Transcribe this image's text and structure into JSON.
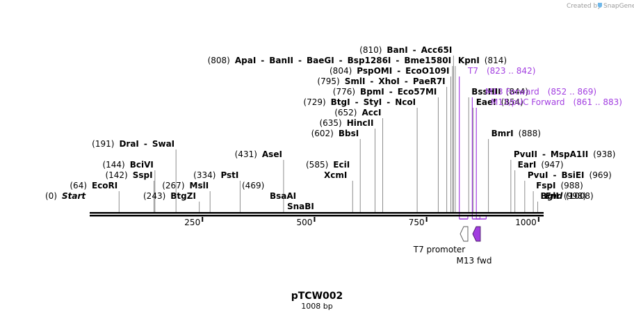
{
  "plasmid": {
    "name": "pTCW002",
    "length_label": "1008 bp",
    "length": 1008
  },
  "credit": {
    "text": "Created by",
    "brand": "SnapGene"
  },
  "axis": {
    "ticks": [
      250,
      500,
      750,
      1000
    ]
  },
  "sites": [
    {
      "row": 0,
      "parts": [
        {
          "t": "(0)"
        },
        {
          "t": "Start",
          "italic": true
        }
      ],
      "pos": 0,
      "line": false
    },
    {
      "row": 0,
      "parts": [
        {
          "t": "End",
          "italic": true
        },
        {
          "t": "(1008)"
        }
      ],
      "pos": 1008,
      "line": false,
      "right": true
    },
    {
      "row": 0,
      "parts": [
        {
          "t": "(243)"
        },
        {
          "t": "BtgZI",
          "bold": true
        }
      ],
      "pos": 243
    },
    {
      "row": 0,
      "parts": [
        {
          "t": "BsaAI",
          "bold": true
        }
      ],
      "pos": 469,
      "sub": "SnaBI"
    },
    {
      "row": 0,
      "parts": [
        {
          "t": "BglI",
          "bold": true
        },
        {
          "t": "(998)"
        }
      ],
      "pos": 998,
      "right": true
    },
    {
      "row": 1,
      "parts": [
        {
          "t": "(64)"
        },
        {
          "t": "EcoRI",
          "bold": true
        }
      ],
      "pos": 64
    },
    {
      "row": 1,
      "parts": [
        {
          "t": "(267)"
        },
        {
          "t": "MslI",
          "bold": true
        }
      ],
      "pos": 267
    },
    {
      "row": 1,
      "parts": [
        {
          "t": "(469)"
        }
      ],
      "pos": 469,
      "line": false
    },
    {
      "row": 1,
      "parts": [
        {
          "t": "FspI",
          "bold": true
        },
        {
          "t": "(988)"
        }
      ],
      "pos": 988,
      "right": true
    },
    {
      "row": 2,
      "parts": [
        {
          "t": "(142)"
        },
        {
          "t": "SspI",
          "bold": true
        }
      ],
      "pos": 142
    },
    {
      "row": 2,
      "parts": [
        {
          "t": "(334)"
        },
        {
          "t": "PstI",
          "bold": true
        }
      ],
      "pos": 334
    },
    {
      "row": 2,
      "parts": [
        {
          "t": "XcmI",
          "bold": true
        }
      ],
      "pos": 585
    },
    {
      "row": 2,
      "parts": [
        {
          "t": "PvuI",
          "bold": true
        },
        {
          "t": "-"
        },
        {
          "t": "BsiEI",
          "bold": true
        },
        {
          "t": "(969)"
        }
      ],
      "pos": 969,
      "right": true
    },
    {
      "row": 3,
      "parts": [
        {
          "t": "(144)"
        },
        {
          "t": "BciVI",
          "bold": true
        }
      ],
      "pos": 144
    },
    {
      "row": 3,
      "parts": [
        {
          "t": "(585)"
        },
        {
          "t": "EciI",
          "bold": true
        }
      ],
      "pos": 585,
      "line": false
    },
    {
      "row": 3,
      "parts": [
        {
          "t": "EarI",
          "bold": true
        },
        {
          "t": "(947)"
        }
      ],
      "pos": 947,
      "right": true
    },
    {
      "row": 4,
      "parts": [
        {
          "t": "(431)"
        },
        {
          "t": "AseI",
          "bold": true
        }
      ],
      "pos": 431
    },
    {
      "row": 4,
      "parts": [
        {
          "t": "PvuII",
          "bold": true
        },
        {
          "t": "-"
        },
        {
          "t": "MspA1II",
          "bold": true
        },
        {
          "t": "(938)"
        }
      ],
      "pos": 938,
      "right": true
    },
    {
      "row": 5,
      "parts": [
        {
          "t": "(191)"
        },
        {
          "t": "DraI",
          "bold": true
        },
        {
          "t": "-"
        },
        {
          "t": "SwaI",
          "bold": true
        }
      ],
      "pos": 191
    },
    {
      "row": 6,
      "parts": [
        {
          "t": "(602)"
        },
        {
          "t": "BbsI",
          "bold": true
        }
      ],
      "pos": 602
    },
    {
      "row": 6,
      "parts": [
        {
          "t": "BmrI",
          "bold": true
        },
        {
          "t": "(888)"
        }
      ],
      "pos": 888,
      "right": true
    },
    {
      "row": 7,
      "parts": [
        {
          "t": "(635)"
        },
        {
          "t": "HincII",
          "bold": true
        }
      ],
      "pos": 635
    },
    {
      "row": 8,
      "parts": [
        {
          "t": "(652)"
        },
        {
          "t": "AccI",
          "bold": true
        }
      ],
      "pos": 652
    },
    {
      "row": 9,
      "parts": [
        {
          "t": "(729)"
        },
        {
          "t": "BtgI",
          "bold": true
        },
        {
          "t": "-"
        },
        {
          "t": "StyI",
          "bold": true
        },
        {
          "t": "-"
        },
        {
          "t": "NcoI",
          "bold": true
        }
      ],
      "pos": 729
    },
    {
      "row": 9,
      "parts": [
        {
          "t": "EaeI",
          "bold": true
        },
        {
          "t": "(854)"
        }
      ],
      "pos": 854,
      "right": true
    },
    {
      "row": 10,
      "parts": [
        {
          "t": "(776)"
        },
        {
          "t": "BpmI",
          "bold": true
        },
        {
          "t": "-"
        },
        {
          "t": "Eco57MI",
          "bold": true
        }
      ],
      "pos": 776
    },
    {
      "row": 10,
      "parts": [
        {
          "t": "BssHII",
          "bold": true
        },
        {
          "t": "(844)"
        }
      ],
      "pos": 844,
      "right": true
    },
    {
      "row": 11,
      "parts": [
        {
          "t": "(795)"
        },
        {
          "t": "SmlI",
          "bold": true
        },
        {
          "t": "-"
        },
        {
          "t": "XhoI",
          "bold": true
        },
        {
          "t": "-"
        },
        {
          "t": "PaeR7I",
          "bold": true
        }
      ],
      "pos": 795
    },
    {
      "row": 12,
      "parts": [
        {
          "t": "(804)"
        },
        {
          "t": "PspOMI",
          "bold": true
        },
        {
          "t": "-"
        },
        {
          "t": "EcoO109I",
          "bold": true
        }
      ],
      "pos": 804
    },
    {
      "row": 13,
      "parts": [
        {
          "t": "(808)"
        },
        {
          "t": "ApaI",
          "bold": true
        },
        {
          "t": "-"
        },
        {
          "t": "BanII",
          "bold": true
        },
        {
          "t": "-"
        },
        {
          "t": "BaeGI",
          "bold": true
        },
        {
          "t": "-"
        },
        {
          "t": "Bsp1286I",
          "bold": true
        },
        {
          "t": "-"
        },
        {
          "t": "Bme1580I",
          "bold": true
        }
      ],
      "pos": 808
    },
    {
      "row": 13,
      "parts": [
        {
          "t": "KpnI",
          "bold": true
        },
        {
          "t": "(814)"
        }
      ],
      "pos": 814,
      "right": true
    },
    {
      "row": 14,
      "parts": [
        {
          "t": "(810)"
        },
        {
          "t": "BanI",
          "bold": true
        },
        {
          "t": "-"
        },
        {
          "t": "Acc65I",
          "bold": true
        }
      ],
      "pos": 810
    }
  ],
  "primers": [
    {
      "name": "T7",
      "range": "(823 .. 842)",
      "start": 823,
      "end": 842
    },
    {
      "name": "M13 Forward",
      "range": "(852 .. 869)",
      "start": 852,
      "end": 869
    },
    {
      "name": "M13/pUC Forward",
      "range": "(861 .. 883)",
      "start": 861,
      "end": 883
    }
  ],
  "features": [
    {
      "name": "T7 promoter",
      "direction": "reverse",
      "color": "#ffffff"
    },
    {
      "name": "M13 fwd",
      "direction": "reverse",
      "color": "#a23ee0"
    }
  ],
  "colors": {
    "primer": "#a23ee0",
    "line": "#808080",
    "backbone": "#000000"
  }
}
